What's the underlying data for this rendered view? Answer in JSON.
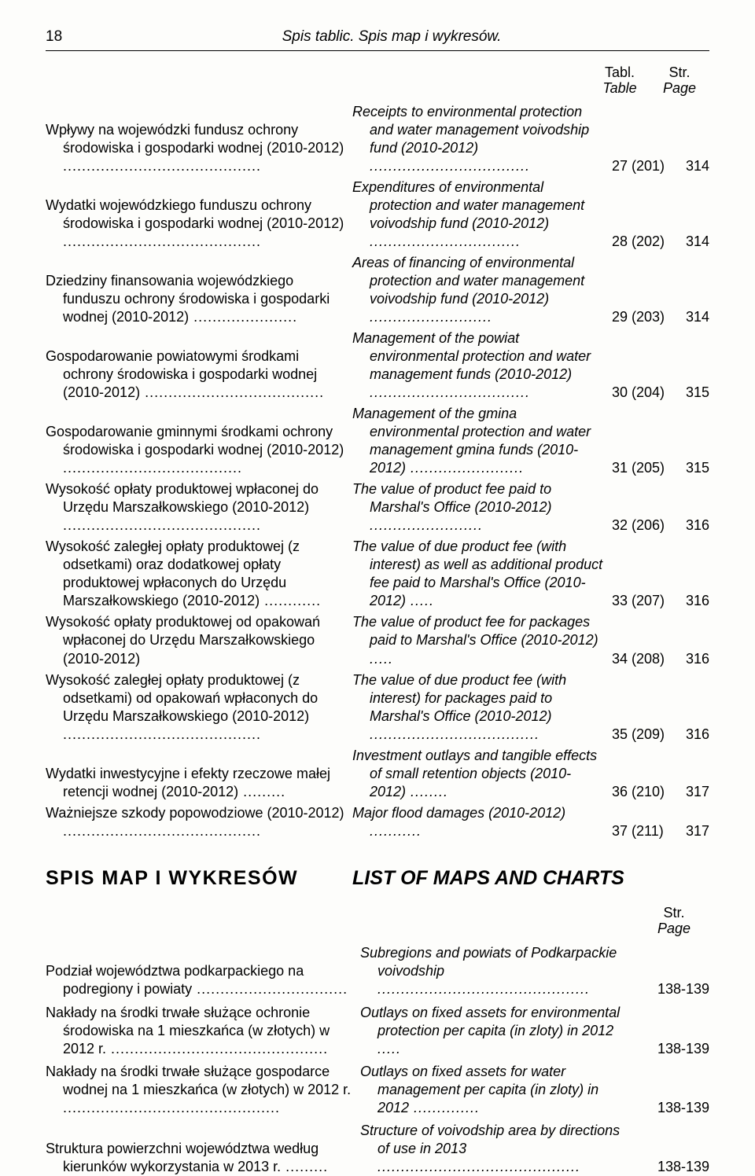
{
  "header": {
    "page_number": "18",
    "title": "Spis tablic. Spis map i wykresów."
  },
  "column_headers": {
    "tabl": "Tabl.",
    "table": "Table",
    "str": "Str.",
    "page": "Page"
  },
  "toc_rows": [
    {
      "left_text": "Wpływy na wojewódzki fundusz ochrony środowiska i gospodarki wodnej (2010-2012)",
      "left_dots": " ..........................................",
      "right_text": "Receipts to environmental protection and water management voivodship fund (2010-2012)",
      "right_dots": " ..................................",
      "tabl": "27 (201)",
      "page": "314"
    },
    {
      "left_text": "Wydatki wojewódzkiego funduszu ochrony środowiska i gospodarki wodnej (2010-2012)",
      "left_dots": " ..........................................",
      "right_text": "Expenditures of environmental protection and water management voivodship fund (2010-2012)",
      "right_dots": " ................................",
      "tabl": "28 (202)",
      "page": "314"
    },
    {
      "left_text": "Dziedziny finansowania wojewódzkiego funduszu ochrony środowiska i gospodarki wodnej (2010-2012)",
      "left_dots": " ......................",
      "right_text": "Areas of financing of environmental protection and water management voivodship fund (2010-2012)",
      "right_dots": " ..........................",
      "tabl": "29 (203)",
      "page": "314"
    },
    {
      "left_text": "Gospodarowanie powiatowymi środkami ochrony środowiska i gospodarki wodnej (2010-2012)",
      "left_dots": " ......................................",
      "right_text": "Management of the powiat environmental protection and water management funds (2010-2012)",
      "right_dots": " ..................................",
      "tabl": "30 (204)",
      "page": "315"
    },
    {
      "left_text": "Gospodarowanie gminnymi środkami ochrony środowiska i gospodarki wodnej (2010-2012)",
      "left_dots": " ......................................",
      "right_text": "Management of the gmina environmental protection and water management gmina funds (2010-2012)",
      "right_dots": " ........................",
      "tabl": "31 (205)",
      "page": "315"
    },
    {
      "left_text": "Wysokość opłaty produktowej wpłaconej do Urzędu Marszałkowskiego (2010-2012)",
      "left_dots": " ..........................................",
      "right_text": "The value of product fee paid to Marshal's Office (2010-2012)",
      "right_dots": " ........................",
      "tabl": "32 (206)",
      "page": "316"
    },
    {
      "left_text": "Wysokość zaległej opłaty produktowej (z odsetkami) oraz dodatkowej opłaty produktowej wpłaconych do Urzędu Marszałkowskiego (2010-2012)",
      "left_dots": " ............",
      "right_text": "The value of due product fee (with interest) as well as additional product fee paid to Marshal's Office (2010-2012)",
      "right_dots": " .....",
      "tabl": "33 (207)",
      "page": "316"
    },
    {
      "left_text": "Wysokość opłaty produktowej od opakowań wpłaconej do Urzędu Marszałkowskiego (2010-2012)",
      "left_dots": "",
      "right_text": "The value of product fee for packages paid to Marshal's Office (2010-2012)",
      "right_dots": " .....",
      "tabl": "34 (208)",
      "page": "316"
    },
    {
      "left_text": "Wysokość zaległej opłaty produktowej (z odsetkami) od opakowań wpłaconych do Urzędu Marszałkowskiego (2010-2012)",
      "left_dots": " ..........................................",
      "right_text": "The value of due product fee (with interest) for packages paid to Marshal's Office (2010-2012)",
      "right_dots": " ....................................",
      "tabl": "35 (209)",
      "page": "316"
    },
    {
      "left_text": "Wydatki inwestycyjne i efekty rzeczowe małej retencji wodnej (2010-2012)",
      "left_dots": " .........",
      "right_text": "Investment outlays and tangible effects of small retention objects (2010-2012)",
      "right_dots": " ........",
      "tabl": "36 (210)",
      "page": "317"
    },
    {
      "left_text": "Ważniejsze szkody popowodziowe (2010-2012)",
      "left_dots": " ..........................................",
      "right_text": "Major flood damages (2010-2012)",
      "right_dots": " ...........",
      "tabl": "37 (211)",
      "page": "317"
    }
  ],
  "section_titles": {
    "left": "SPIS  MAP  I  WYKRESÓW",
    "right": "LIST OF MAPS AND CHARTS"
  },
  "page_header2": {
    "str": "Str.",
    "page": "Page"
  },
  "toc2_rows": [
    {
      "left_text": "Podział województwa podkarpackiego na podregiony i powiaty",
      "left_dots": " ................................",
      "right_text": "Subregions and powiats of Podkarpackie voivodship",
      "right_dots": " .............................................",
      "page": "138-139"
    },
    {
      "left_text": "Nakłady na środki trwałe służące ochronie środowiska na 1 mieszkańca (w złotych) w 2012 r.",
      "left_dots": " ..............................................",
      "right_text": "Outlays on fixed assets for environmental protection per capita (in zloty) in 2012",
      "right_dots": " .....",
      "page": "138-139"
    },
    {
      "left_text": "Nakłady na środki trwałe służące gospodarce wodnej na 1 mieszkańca (w złotych) w 2012 r.",
      "left_dots": " ..............................................",
      "right_text": "Outlays on fixed assets for water management per capita (in zloty) in 2012",
      "right_dots": " ..............",
      "page": "138-139"
    },
    {
      "left_text": "Struktura powierzchni województwa według kierunków wykorzystania w 2013 r.",
      "left_dots": " .........",
      "right_text": "Structure of voivodship area by directions of use in 2013",
      "right_dots": " ...........................................",
      "page": "138-139"
    }
  ]
}
